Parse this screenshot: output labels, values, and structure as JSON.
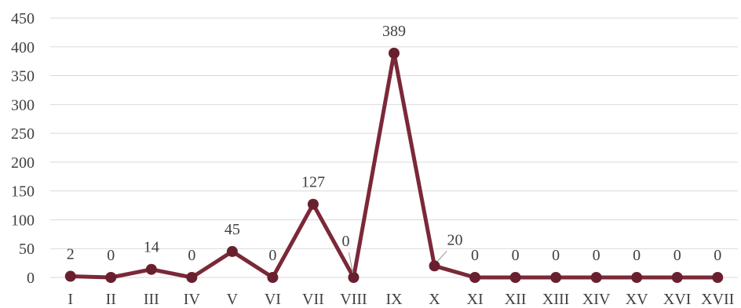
{
  "chart_data": {
    "type": "line",
    "title": "",
    "xlabel": "",
    "ylabel": "",
    "categories": [
      "I",
      "II",
      "III",
      "IV",
      "V",
      "VI",
      "VII",
      "VIII",
      "IX",
      "X",
      "XI",
      "XII",
      "XIII",
      "XIV",
      "XV",
      "XVI",
      "XVII"
    ],
    "series": [
      {
        "values": [
          2,
          0,
          14,
          0,
          45,
          0,
          127,
          0,
          389,
          20,
          0,
          0,
          0,
          0,
          0,
          0,
          0
        ]
      }
    ],
    "data_labels": [
      "2",
      "0",
      "14",
      "0",
      "45",
      "0",
      "127",
      "0",
      "389",
      "20",
      "0",
      "0",
      "0",
      "0",
      "0",
      "0",
      "0"
    ],
    "ylim": [
      0,
      450
    ],
    "yticks": [
      0,
      50,
      100,
      150,
      200,
      250,
      300,
      350,
      400,
      450
    ],
    "grid": true,
    "legend": "none",
    "colors": {
      "line": "#7b2838",
      "marker": "#6a1f2f",
      "grid": "#d9d9d9",
      "text": "#404040"
    }
  }
}
